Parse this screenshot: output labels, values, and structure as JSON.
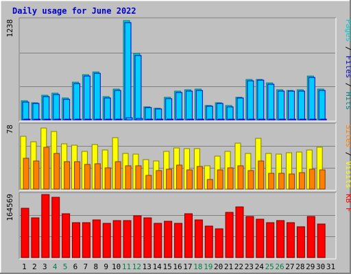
{
  "title": "Daily usage for June 2022",
  "colors": {
    "background": "#c0c0c0",
    "plot_background": "#c0c0c0",
    "title_text": "#0000cc",
    "grid": "#808080",
    "hits": "#00cccc",
    "hits_dark": "#008080",
    "files": "#00ccff",
    "files_dark": "#0000cc",
    "pages": "#00ccff",
    "visits": "#ffff00",
    "sites": "#ff8000",
    "kbytes": "#ff0000",
    "weekend_day_label": "#008040",
    "weekday_day_label": "#000000"
  },
  "chart_data": [
    {
      "type": "bar",
      "panel": "hits-files-pages",
      "ylabel_parts": [
        {
          "text": "Pages",
          "color": "#00cccc"
        },
        {
          "text": " / ",
          "color": "#000000"
        },
        {
          "text": "Files",
          "color": "#0000cc"
        },
        {
          "text": " / ",
          "color": "#000000"
        },
        {
          "text": "Hits",
          "color": "#008080"
        }
      ],
      "y_max_label": "1238",
      "ylim": [
        0,
        1238
      ],
      "series": [
        {
          "name": "Hits",
          "values": [
            232,
            210,
            302,
            330,
            270,
            462,
            555,
            590,
            285,
            375,
            1225,
            815,
            160,
            145,
            280,
            355,
            370,
            380,
            180,
            210,
            175,
            280,
            495,
            500,
            455,
            370,
            365,
            370,
            540,
            380
          ]
        },
        {
          "name": "Files",
          "values": [
            215,
            200,
            290,
            315,
            255,
            450,
            540,
            575,
            270,
            360,
            1200,
            790,
            150,
            135,
            265,
            340,
            355,
            365,
            170,
            200,
            160,
            270,
            480,
            485,
            440,
            355,
            350,
            355,
            520,
            365
          ]
        },
        {
          "name": "Pages",
          "values": [
            5,
            4,
            6,
            6,
            5,
            8,
            10,
            10,
            5,
            7,
            22,
            14,
            3,
            3,
            5,
            6,
            7,
            7,
            3,
            4,
            3,
            5,
            9,
            9,
            8,
            7,
            6,
            7,
            10,
            7
          ]
        }
      ]
    },
    {
      "type": "bar",
      "panel": "visits-sites",
      "ylabel_parts": [
        {
          "text": "Sites",
          "color": "#ff8000"
        },
        {
          "text": " / ",
          "color": "#000000"
        },
        {
          "text": "Visits",
          "color": "#ffff00"
        }
      ],
      "y_max_label": "78",
      "ylim": [
        0,
        78
      ],
      "series": [
        {
          "name": "Visits",
          "values": [
            64,
            57,
            74,
            70,
            55,
            53,
            46,
            54,
            47,
            62,
            43,
            42,
            36,
            34,
            46,
            50,
            49,
            49,
            28,
            40,
            46,
            56,
            43,
            61,
            43,
            42,
            44,
            45,
            47,
            51
          ]
        },
        {
          "name": "Sites",
          "values": [
            37,
            34,
            51,
            43,
            33,
            33,
            30,
            31,
            26,
            33,
            28,
            28,
            17,
            22,
            24,
            29,
            23,
            27,
            12,
            23,
            26,
            28,
            22,
            34,
            19,
            19,
            18,
            20,
            24,
            23
          ]
        }
      ]
    },
    {
      "type": "bar",
      "panel": "kbytes",
      "ylabel_parts": [
        {
          "text": "KB F",
          "color": "#ff0000"
        }
      ],
      "y_max_label": "164569",
      "ylim": [
        0,
        164569
      ],
      "series": [
        {
          "name": "KB F",
          "values": [
            128000,
            102000,
            163000,
            156000,
            114000,
            91000,
            91000,
            97000,
            88000,
            96000,
            95000,
            108000,
            103000,
            89000,
            94000,
            88000,
            114000,
            97000,
            81000,
            75000,
            116000,
            131000,
            106000,
            99000,
            91000,
            95000,
            91000,
            79000,
            106000,
            87000
          ]
        }
      ]
    }
  ],
  "x_labels": [
    {
      "day": "1",
      "weekend": false
    },
    {
      "day": "2",
      "weekend": false
    },
    {
      "day": "3",
      "weekend": false
    },
    {
      "day": "4",
      "weekend": true
    },
    {
      "day": "5",
      "weekend": true
    },
    {
      "day": "6",
      "weekend": false
    },
    {
      "day": "7",
      "weekend": false
    },
    {
      "day": "8",
      "weekend": false
    },
    {
      "day": "9",
      "weekend": false
    },
    {
      "day": "10",
      "weekend": false
    },
    {
      "day": "11",
      "weekend": true
    },
    {
      "day": "12",
      "weekend": true
    },
    {
      "day": "13",
      "weekend": false
    },
    {
      "day": "14",
      "weekend": false
    },
    {
      "day": "15",
      "weekend": false
    },
    {
      "day": "16",
      "weekend": false
    },
    {
      "day": "17",
      "weekend": false
    },
    {
      "day": "18",
      "weekend": true
    },
    {
      "day": "19",
      "weekend": true
    },
    {
      "day": "20",
      "weekend": false
    },
    {
      "day": "21",
      "weekend": false
    },
    {
      "day": "22",
      "weekend": false
    },
    {
      "day": "23",
      "weekend": false
    },
    {
      "day": "24",
      "weekend": false
    },
    {
      "day": "25",
      "weekend": true
    },
    {
      "day": "26",
      "weekend": true
    },
    {
      "day": "27",
      "weekend": false
    },
    {
      "day": "28",
      "weekend": false
    },
    {
      "day": "29",
      "weekend": false
    },
    {
      "day": "30",
      "weekend": false
    },
    {
      "day": "31",
      "weekend": false
    }
  ]
}
